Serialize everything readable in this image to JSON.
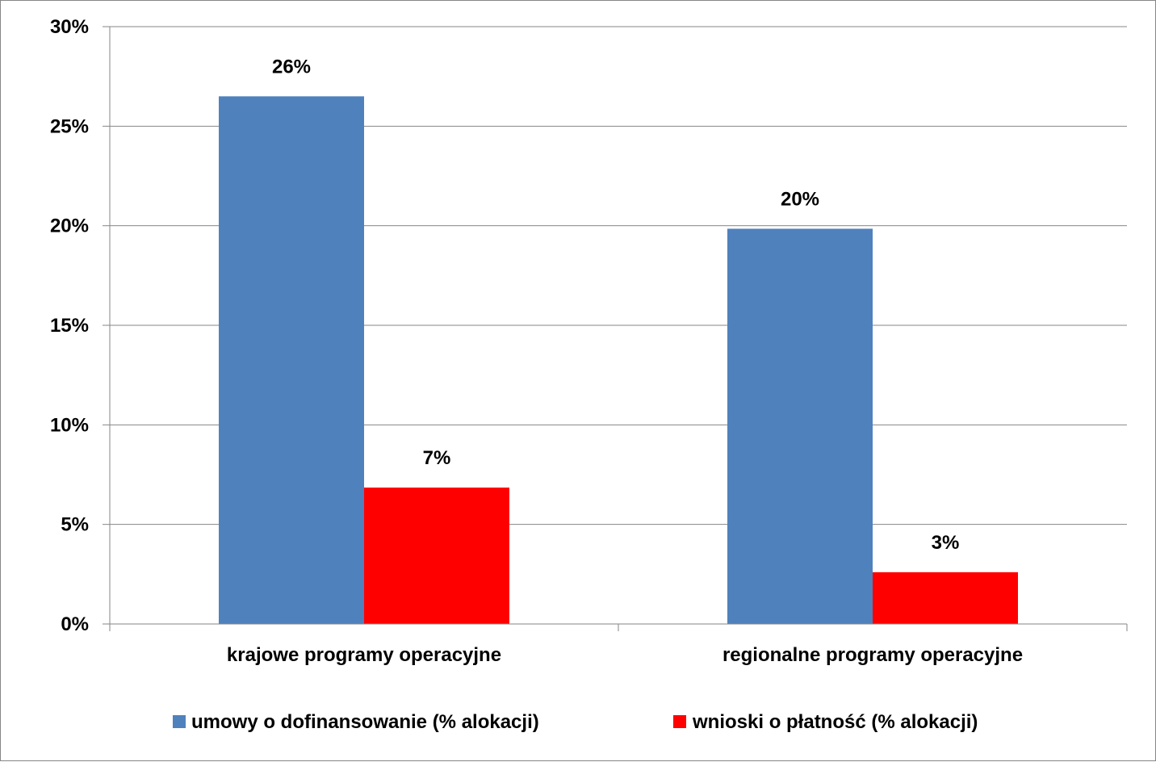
{
  "chart_data": {
    "type": "bar",
    "categories": [
      "krajowe programy operacyjne",
      "regionalne programy operacyjne"
    ],
    "series": [
      {
        "name": "umowy o dofinansowanie (% alokacji)",
        "values": [
          26.5,
          19.85
        ],
        "labels": [
          "26%",
          "20%"
        ],
        "color": "#4F81BD"
      },
      {
        "name": "wnioski o płatność (% alokacji)",
        "values": [
          6.85,
          2.6
        ],
        "labels": [
          "7%",
          "3%"
        ],
        "color": "#FF0000"
      }
    ],
    "ylim": [
      0,
      30
    ],
    "yticks": [
      0,
      5,
      10,
      15,
      20,
      25,
      30
    ],
    "ytick_labels": [
      "0%",
      "5%",
      "10%",
      "15%",
      "20%",
      "25%",
      "30%"
    ],
    "grid": true,
    "legend_position": "bottom"
  }
}
